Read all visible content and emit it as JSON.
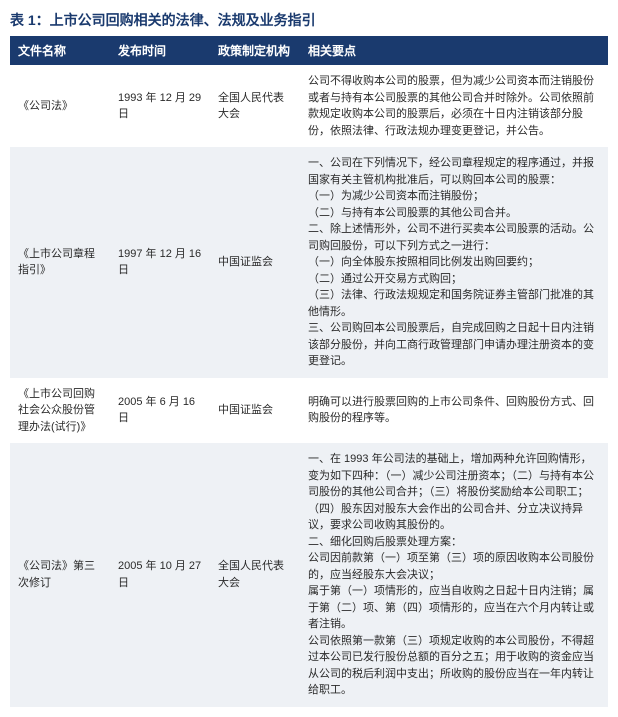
{
  "title": "表 1：上市公司回购相关的法律、法规及业务指引",
  "headers": {
    "name": "文件名称",
    "date": "发布时间",
    "org": "政策制定机构",
    "points": "相关要点"
  },
  "rows": [
    {
      "name": "《公司法》",
      "date": "1993 年 12 月 29 日",
      "org": "全国人民代表大会",
      "points": "公司不得收购本公司的股票，但为减少公司资本而注销股份或者与持有本公司股票的其他公司合并时除外。公司依照前款规定收购本公司的股票后，必须在十日内注销该部分股份，依照法律、行政法规办理变更登记，并公告。"
    },
    {
      "name": "《上市公司章程指引》",
      "date": "1997 年 12 月 16 日",
      "org": "中国证监会",
      "points": "一、公司在下列情况下，经公司章程规定的程序通过，并报国家有关主管机构批准后，可以购回本公司的股票：\n（一）为减少公司资本而注销股份；\n（二）与持有本公司股票的其他公司合并。\n二、除上述情形外，公司不进行买卖本公司股票的活动。公司购回股份，可以下列方式之一进行：\n（一）向全体股东按照相同比例发出购回要约；\n（二）通过公开交易方式购回；\n（三）法律、行政法规规定和国务院证券主管部门批准的其他情形。\n三、公司购回本公司股票后，自完成回购之日起十日内注销该部分股份，并向工商行政管理部门申请办理注册资本的变更登记。"
    },
    {
      "name": "《上市公司回购社会公众股份管理办法(试行)》",
      "date": "2005 年 6 月 16 日",
      "org": "中国证监会",
      "points": "明确可以进行股票回购的上市公司条件、回购股份方式、回购股份的程序等。"
    },
    {
      "name": "《公司法》第三次修订",
      "date": "2005 年 10 月 27 日",
      "org": "全国人民代表大会",
      "points": "一、在 1993 年公司法的基础上，增加两种允许回购情形，变为如下四种：（一）减少公司注册资本；（二）与持有本公司股份的其他公司合并；（三）将股份奖励给本公司职工；（四）股东因对股东大会作出的公司合并、分立决议持异议，要求公司收购其股份的。\n二、细化回购后股票处理方案：\n公司因前款第（一）项至第（三）项的原因收购本公司股份的，应当经股东大会决议；\n属于第（一）项情形的，应当自收购之日起十日内注销；属于第（二）项、第（四）项情形的，应当在六个月内转让或者注销。\n公司依照第一款第（三）项规定收购的本公司股份，不得超过本公司已发行股份总额的百分之五；用于收购的资金应当从公司的税后利润中支出；所收购的股份应当在一年内转让给职工。"
    }
  ],
  "colors": {
    "header_bg": "#1a3a6e",
    "header_fg": "#ffffff",
    "row_alt": "#eef1f5",
    "title_color": "#1a3a6e"
  }
}
